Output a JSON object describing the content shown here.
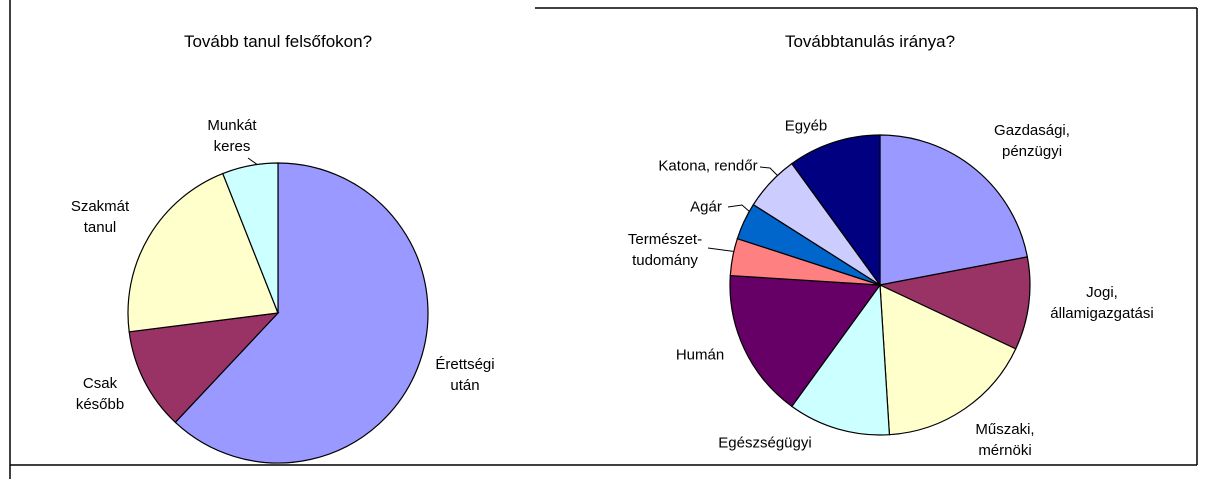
{
  "chart_data": [
    {
      "type": "pie",
      "title": "Tovább tanul felsőfokon?",
      "categories": [
        "Érettségi\nután",
        "Csak\nkésőbb",
        "Szakmát\ntanul",
        "Munkát\nkeres"
      ],
      "values": [
        62,
        11,
        21,
        6
      ],
      "colors": [
        "#9999ff",
        "#993366",
        "#ffffcc",
        "#ccffff"
      ]
    },
    {
      "type": "pie",
      "title": "Továbbtanulás iránya?",
      "categories": [
        "Gazdasági,\npénzügyi",
        "Jogi,\nállamigazgatási",
        "Műszaki,\nmérnöki",
        "Egészségügyi",
        "Humán",
        "Természet-\ntudomány",
        "Agár",
        "Katona, rendőr",
        "Egyéb"
      ],
      "values": [
        22,
        10,
        17,
        11,
        16,
        4,
        4,
        6,
        10
      ],
      "colors": [
        "#9999ff",
        "#993366",
        "#ffffcc",
        "#ccffff",
        "#660066",
        "#ff8080",
        "#0066cc",
        "#ccccff",
        "#000080"
      ]
    }
  ]
}
